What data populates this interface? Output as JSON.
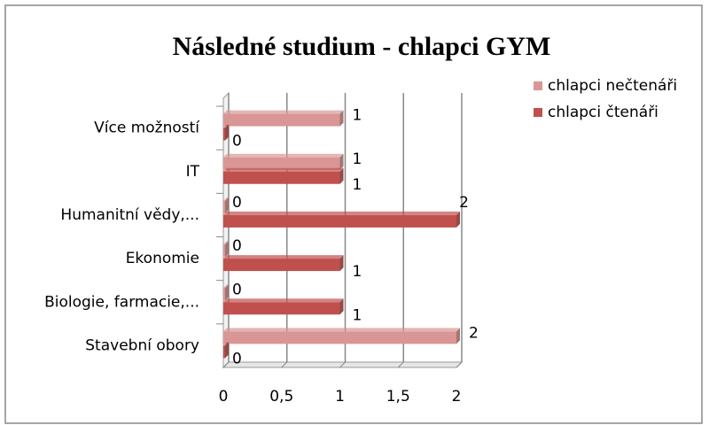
{
  "chart_data": {
    "type": "bar",
    "orientation": "horizontal",
    "title": "Následné studium - chlapci GYM",
    "categories": [
      "Více možností",
      "IT",
      "Humanitní vědy,...",
      "Ekonomie",
      "Biologie, farmacie,...",
      "Stavební obory"
    ],
    "series": [
      {
        "name": "chlapci nečtenáři",
        "color": "#d99694",
        "values": [
          1,
          1,
          0,
          0,
          0,
          2
        ]
      },
      {
        "name": "chlapci čtenáři",
        "color": "#c0504d",
        "values": [
          0,
          1,
          2,
          1,
          1,
          0
        ]
      }
    ],
    "xlim": [
      0,
      2
    ],
    "xticks": [
      0,
      {
        "value": 0.5,
        "label": "0,5"
      },
      1,
      {
        "value": 1.5,
        "label": "1,5"
      },
      2
    ],
    "grid": true,
    "legend": "right"
  }
}
